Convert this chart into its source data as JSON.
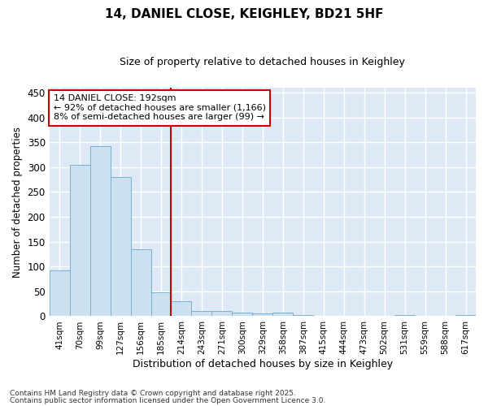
{
  "title": "14, DANIEL CLOSE, KEIGHLEY, BD21 5HF",
  "subtitle": "Size of property relative to detached houses in Keighley",
  "xlabel": "Distribution of detached houses by size in Keighley",
  "ylabel": "Number of detached properties",
  "categories": [
    "41sqm",
    "70sqm",
    "99sqm",
    "127sqm",
    "156sqm",
    "185sqm",
    "214sqm",
    "243sqm",
    "271sqm",
    "300sqm",
    "329sqm",
    "358sqm",
    "387sqm",
    "415sqm",
    "444sqm",
    "473sqm",
    "502sqm",
    "531sqm",
    "559sqm",
    "588sqm",
    "617sqm"
  ],
  "values": [
    93,
    305,
    342,
    280,
    135,
    48,
    30,
    10,
    10,
    8,
    5,
    8,
    3,
    1,
    1,
    1,
    0,
    3,
    0,
    0,
    3
  ],
  "bar_color": "#cce0f0",
  "bar_edge_color": "#7ab0d4",
  "plot_bg_color": "#ddeaf5",
  "fig_bg_color": "#ffffff",
  "grid_color": "#ffffff",
  "vline_color": "#cc0000",
  "vline_x": 5.5,
  "annotation_text": "14 DANIEL CLOSE: 192sqm\n← 92% of detached houses are smaller (1,166)\n8% of semi-detached houses are larger (99) →",
  "annotation_box_edgecolor": "#cc0000",
  "ylim": [
    0,
    460
  ],
  "yticks": [
    0,
    50,
    100,
    150,
    200,
    250,
    300,
    350,
    400,
    450
  ],
  "footer1": "Contains HM Land Registry data © Crown copyright and database right 2025.",
  "footer2": "Contains public sector information licensed under the Open Government Licence 3.0."
}
